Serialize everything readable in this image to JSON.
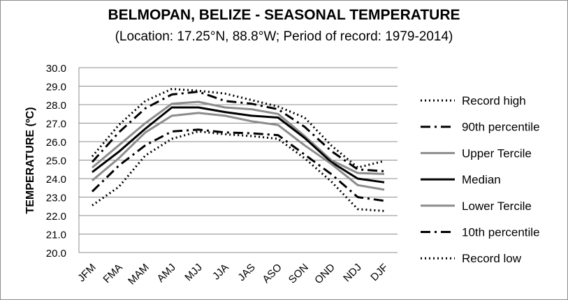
{
  "chart_data": {
    "type": "line",
    "title": "BELMOPAN, BELIZE - SEASONAL TEMPERATURE",
    "subtitle": "(Location: 17.25°N, 88.8°W; Period of record: 1979-2014)",
    "ylabel": "TEMPERATURE (ºC)",
    "ylim": [
      20.0,
      30.0
    ],
    "ytick_step": 1.0,
    "grid": "horizontal",
    "legend_position": "right",
    "categories": [
      "JFM",
      "FMA",
      "MAM",
      "AMJ",
      "MJJ",
      "JJA",
      "JAS",
      "ASO",
      "SON",
      "OND",
      "NDJ",
      "DJF"
    ],
    "series": [
      {
        "name": "Record high",
        "color": "#000000",
        "style": "dotted",
        "values": [
          25.2,
          26.9,
          28.2,
          28.85,
          28.75,
          28.6,
          28.25,
          27.9,
          27.3,
          25.8,
          24.6,
          24.95
        ]
      },
      {
        "name": "90th percentile",
        "color": "#000000",
        "style": "dashdot",
        "values": [
          24.9,
          26.5,
          27.8,
          28.55,
          28.7,
          28.2,
          28.05,
          27.75,
          26.8,
          25.5,
          24.5,
          24.4
        ]
      },
      {
        "name": "Upper Tercile",
        "color": "#8c8c8c",
        "style": "solid",
        "values": [
          24.6,
          25.8,
          27.0,
          28.05,
          28.15,
          27.85,
          27.75,
          27.5,
          26.3,
          25.0,
          24.3,
          24.25
        ]
      },
      {
        "name": "Median",
        "color": "#000000",
        "style": "solid",
        "values": [
          24.35,
          25.45,
          26.7,
          27.85,
          27.85,
          27.6,
          27.4,
          27.3,
          26.2,
          24.9,
          24.0,
          23.8
        ]
      },
      {
        "name": "Lower Tercile",
        "color": "#8c8c8c",
        "style": "solid",
        "values": [
          23.9,
          25.1,
          26.5,
          27.4,
          27.55,
          27.4,
          27.1,
          26.9,
          25.8,
          24.8,
          23.65,
          23.4
        ]
      },
      {
        "name": "10th percentile",
        "color": "#000000",
        "style": "dashdot",
        "values": [
          23.3,
          24.7,
          25.8,
          26.55,
          26.65,
          26.5,
          26.45,
          26.35,
          25.3,
          24.25,
          23.0,
          22.8
        ]
      },
      {
        "name": "Record low",
        "color": "#000000",
        "style": "dotted",
        "values": [
          22.55,
          23.55,
          25.25,
          26.15,
          26.55,
          26.4,
          26.3,
          26.15,
          25.1,
          23.85,
          22.35,
          22.25
        ]
      }
    ]
  }
}
